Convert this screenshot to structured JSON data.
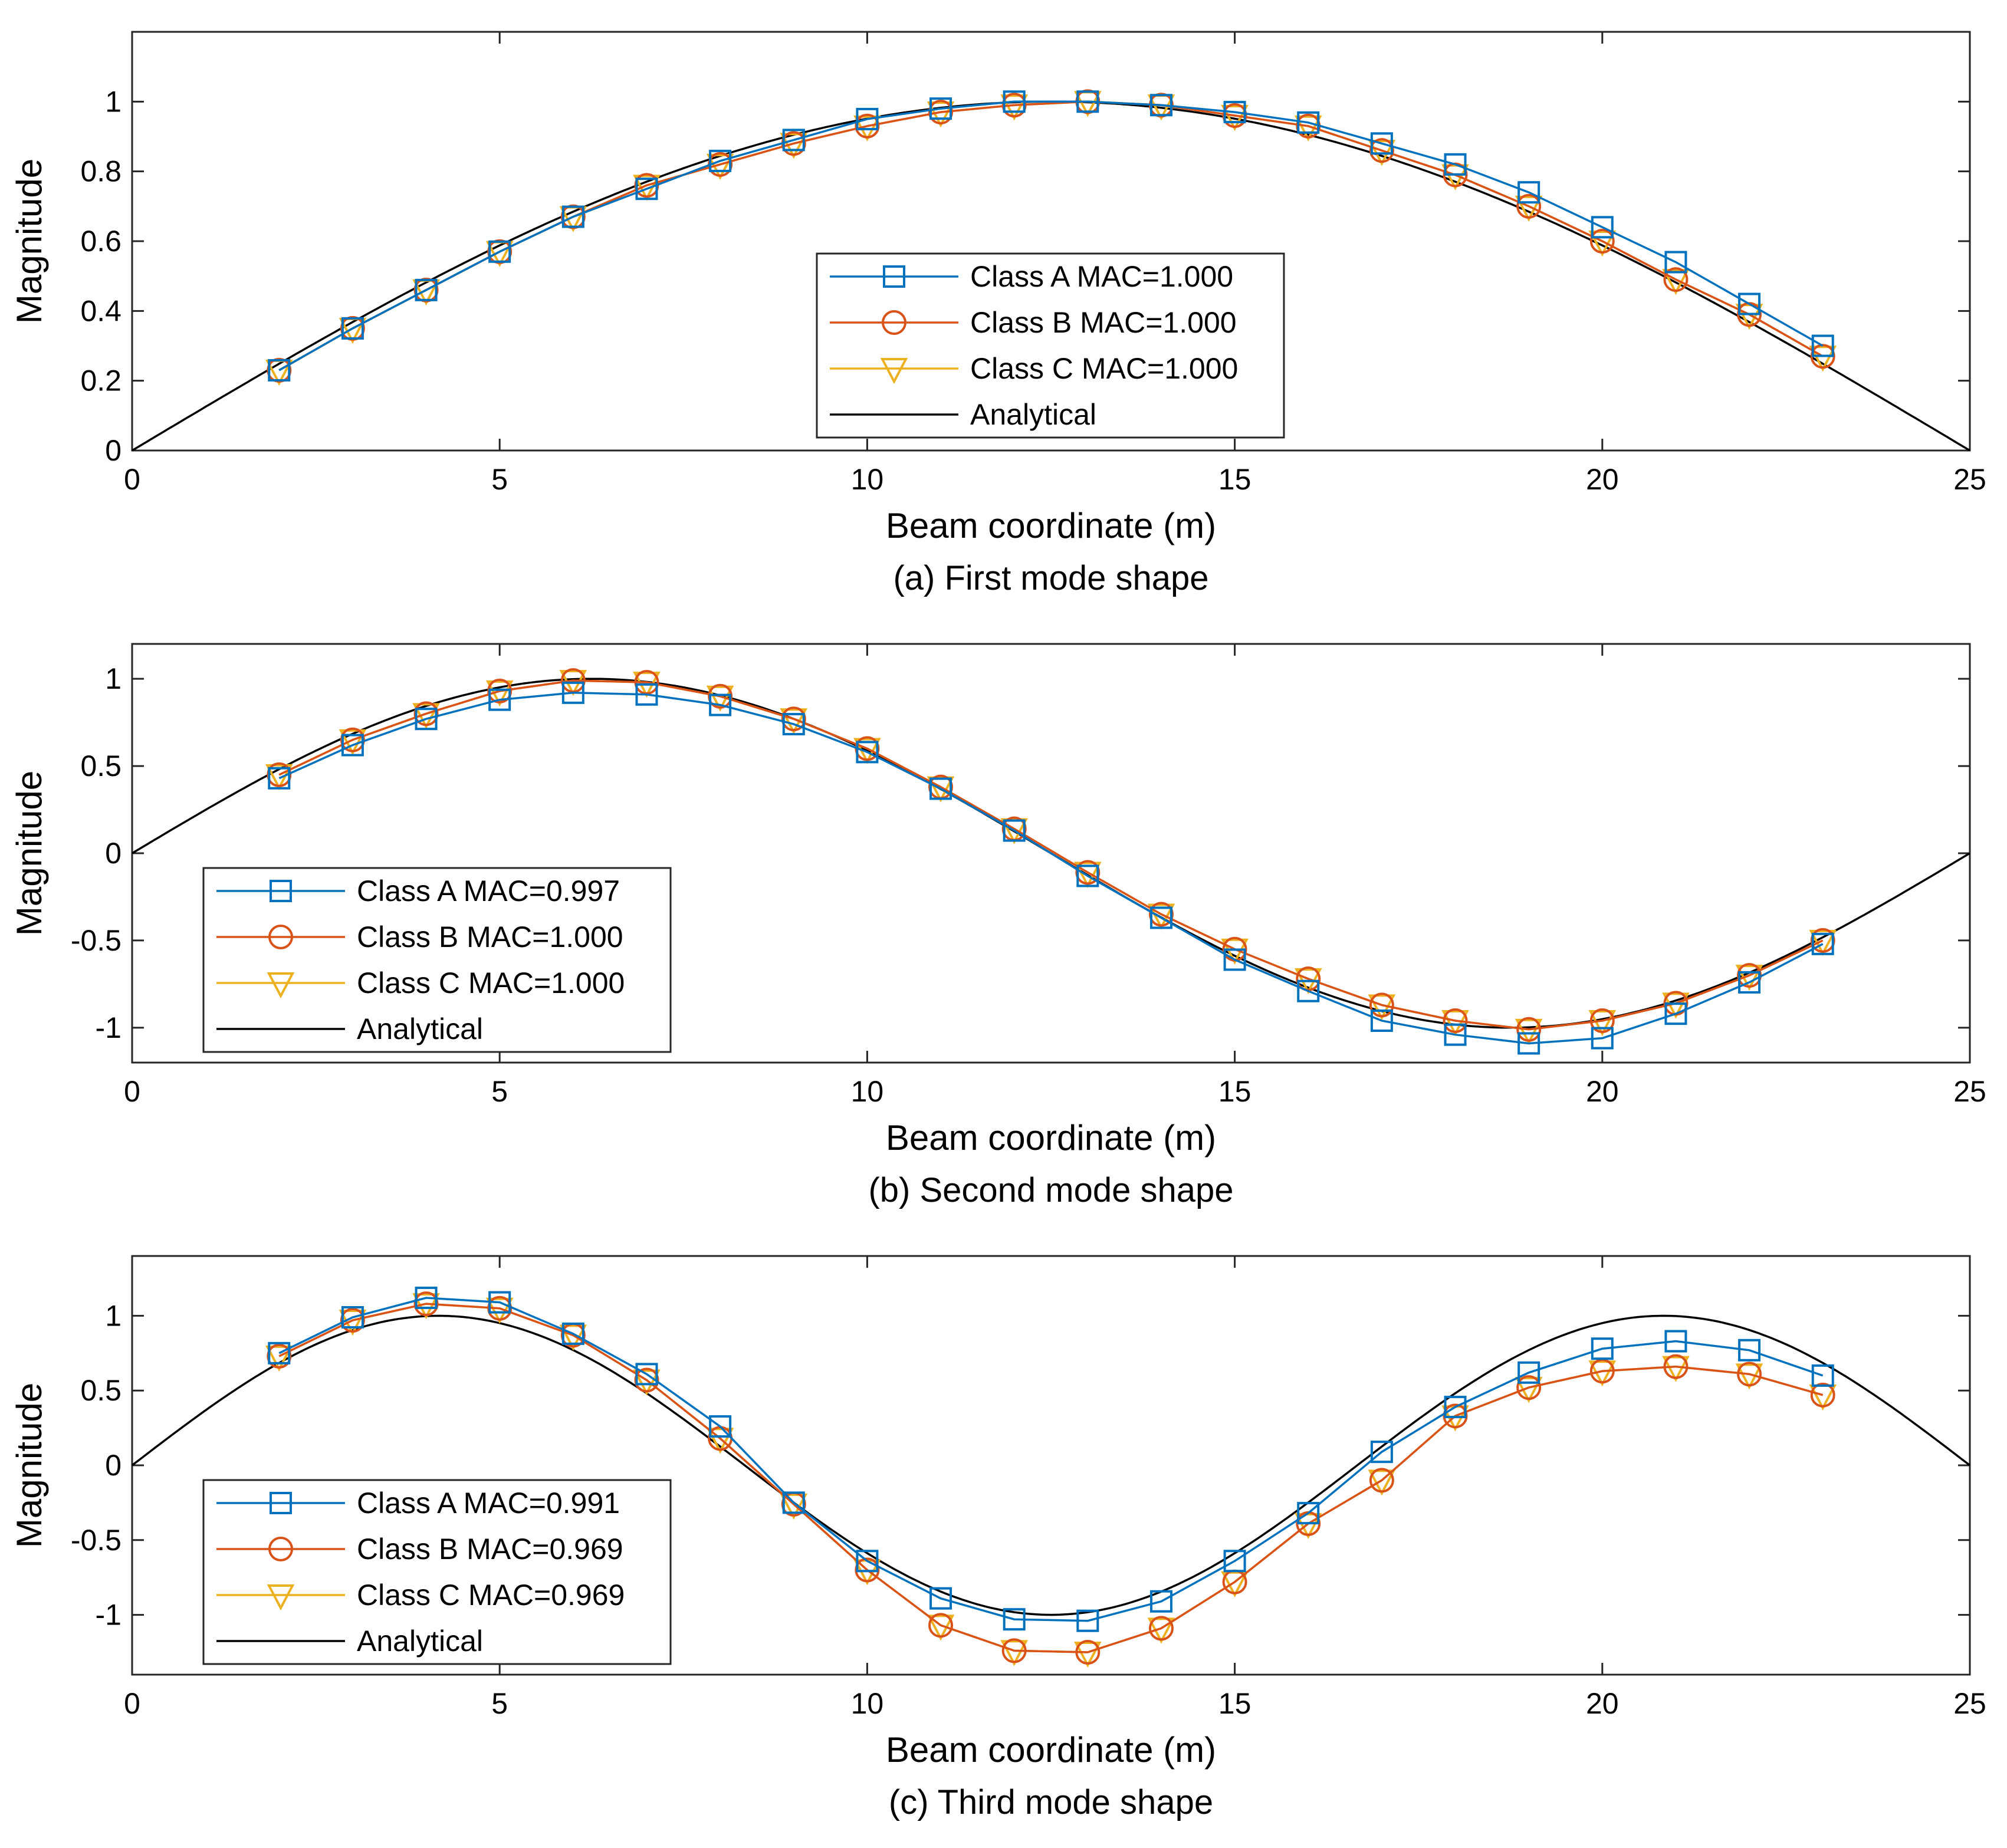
{
  "colors": {
    "class_a": "#0072BD",
    "class_b": "#D95319",
    "class_c": "#EDB120",
    "analytical": "#000000"
  },
  "chart_data": [
    {
      "type": "line",
      "caption": "(a) First mode shape",
      "xlabel": "Beam coordinate (m)",
      "ylabel": "Magnitude",
      "xlim": [
        0,
        25
      ],
      "ylim": [
        0,
        1.2
      ],
      "xticks": [
        0,
        5,
        10,
        15,
        20,
        25
      ],
      "xtick_labels": [
        "0",
        "5",
        "10",
        "15",
        "20",
        "25"
      ],
      "yticks": [
        0,
        0.2,
        0.4,
        0.6,
        0.8,
        1
      ],
      "ytick_labels": [
        "0",
        "0.2",
        "0.4",
        "0.6",
        "0.8",
        "1"
      ],
      "legend_position": "center",
      "x": [
        2,
        3,
        4,
        5,
        6,
        7,
        8,
        9,
        10,
        11,
        12,
        13,
        14,
        15,
        16,
        17,
        18,
        19,
        20,
        21,
        22,
        23
      ],
      "analytical": {
        "name": "Analytical",
        "function": "sin",
        "mode": 1,
        "length": 25
      },
      "series": [
        {
          "name": "Class A MAC=1.000",
          "key": "class_a",
          "marker": "square",
          "values": [
            0.23,
            0.35,
            0.46,
            0.57,
            0.67,
            0.75,
            0.83,
            0.89,
            0.95,
            0.98,
            1.0,
            1.0,
            0.99,
            0.97,
            0.94,
            0.88,
            0.82,
            0.74,
            0.64,
            0.54,
            0.42,
            0.3
          ]
        },
        {
          "name": "Class B MAC=1.000",
          "key": "class_b",
          "marker": "circle",
          "values": [
            0.23,
            0.35,
            0.46,
            0.57,
            0.67,
            0.76,
            0.82,
            0.88,
            0.93,
            0.97,
            0.99,
            1.0,
            0.99,
            0.96,
            0.93,
            0.86,
            0.79,
            0.7,
            0.6,
            0.49,
            0.39,
            0.27
          ]
        },
        {
          "name": "Class C MAC=1.000",
          "key": "class_c",
          "marker": "triangle",
          "values": [
            0.23,
            0.35,
            0.46,
            0.57,
            0.67,
            0.76,
            0.82,
            0.88,
            0.93,
            0.97,
            0.99,
            1.0,
            0.99,
            0.96,
            0.93,
            0.86,
            0.79,
            0.7,
            0.6,
            0.49,
            0.39,
            0.27
          ]
        }
      ]
    },
    {
      "type": "line",
      "caption": "(b) Second mode shape",
      "xlabel": "Beam coordinate (m)",
      "ylabel": "Magnitude",
      "xlim": [
        0,
        25
      ],
      "ylim": [
        -1.2,
        1.2
      ],
      "xticks": [
        0,
        5,
        10,
        15,
        20,
        25
      ],
      "xtick_labels": [
        "0",
        "5",
        "10",
        "15",
        "20",
        "25"
      ],
      "yticks": [
        -1,
        -0.5,
        0,
        0.5,
        1
      ],
      "ytick_labels": [
        "-1",
        "-0.5",
        "0",
        "0.5",
        "1"
      ],
      "legend_position": "lower-left",
      "x": [
        2,
        3,
        4,
        5,
        6,
        7,
        8,
        9,
        10,
        11,
        12,
        13,
        14,
        15,
        16,
        17,
        18,
        19,
        20,
        21,
        22,
        23
      ],
      "analytical": {
        "name": "Analytical",
        "function": "sin",
        "mode": 2,
        "length": 25
      },
      "series": [
        {
          "name": "Class A MAC=0.997",
          "key": "class_a",
          "marker": "square",
          "values": [
            0.43,
            0.62,
            0.77,
            0.88,
            0.92,
            0.91,
            0.85,
            0.74,
            0.58,
            0.37,
            0.13,
            -0.13,
            -0.37,
            -0.61,
            -0.79,
            -0.96,
            -1.04,
            -1.09,
            -1.06,
            -0.92,
            -0.74,
            -0.52
          ]
        },
        {
          "name": "Class B MAC=1.000",
          "key": "class_b",
          "marker": "circle",
          "values": [
            0.45,
            0.65,
            0.8,
            0.93,
            0.99,
            0.98,
            0.9,
            0.77,
            0.6,
            0.38,
            0.14,
            -0.11,
            -0.35,
            -0.55,
            -0.72,
            -0.87,
            -0.96,
            -1.01,
            -0.96,
            -0.86,
            -0.7,
            -0.5
          ]
        },
        {
          "name": "Class C MAC=1.000",
          "key": "class_c",
          "marker": "triangle",
          "values": [
            0.45,
            0.65,
            0.8,
            0.93,
            0.99,
            0.98,
            0.9,
            0.77,
            0.6,
            0.38,
            0.14,
            -0.11,
            -0.35,
            -0.55,
            -0.72,
            -0.87,
            -0.96,
            -1.01,
            -0.96,
            -0.86,
            -0.7,
            -0.5
          ]
        }
      ]
    },
    {
      "type": "line",
      "caption": "(c) Third mode shape",
      "xlabel": "Beam coordinate (m)",
      "ylabel": "Magnitude",
      "xlim": [
        0,
        25
      ],
      "ylim": [
        -1.4,
        1.4
      ],
      "xticks": [
        0,
        5,
        10,
        15,
        20,
        25
      ],
      "xtick_labels": [
        "0",
        "5",
        "10",
        "15",
        "20",
        "25"
      ],
      "yticks": [
        -1,
        -0.5,
        0,
        0.5,
        1
      ],
      "ytick_labels": [
        "-1",
        "-0.5",
        "0",
        "0.5",
        "1"
      ],
      "legend_position": "lower-left",
      "x": [
        2,
        3,
        4,
        5,
        6,
        7,
        8,
        9,
        10,
        11,
        12,
        13,
        14,
        15,
        16,
        17,
        18,
        19,
        20,
        21,
        22,
        23
      ],
      "analytical": {
        "name": "Analytical",
        "function": "sin",
        "mode": 3,
        "length": 25
      },
      "series": [
        {
          "name": "Class A MAC=0.991",
          "key": "class_a",
          "marker": "square",
          "values": [
            0.75,
            0.99,
            1.12,
            1.09,
            0.88,
            0.61,
            0.26,
            -0.25,
            -0.64,
            -0.89,
            -1.03,
            -1.04,
            -0.91,
            -0.64,
            -0.32,
            0.09,
            0.39,
            0.62,
            0.78,
            0.83,
            0.77,
            0.6
          ]
        },
        {
          "name": "Class B MAC=0.969",
          "key": "class_b",
          "marker": "circle",
          "values": [
            0.73,
            0.97,
            1.08,
            1.05,
            0.87,
            0.57,
            0.18,
            -0.26,
            -0.7,
            -1.07,
            -1.24,
            -1.25,
            -1.09,
            -0.78,
            -0.39,
            -0.1,
            0.33,
            0.52,
            0.63,
            0.66,
            0.61,
            0.47
          ]
        },
        {
          "name": "Class C MAC=0.969",
          "key": "class_c",
          "marker": "triangle",
          "values": [
            0.73,
            0.97,
            1.08,
            1.05,
            0.87,
            0.57,
            0.18,
            -0.26,
            -0.7,
            -1.07,
            -1.24,
            -1.25,
            -1.09,
            -0.78,
            -0.39,
            -0.1,
            0.33,
            0.52,
            0.63,
            0.66,
            0.61,
            0.47
          ]
        }
      ]
    }
  ]
}
